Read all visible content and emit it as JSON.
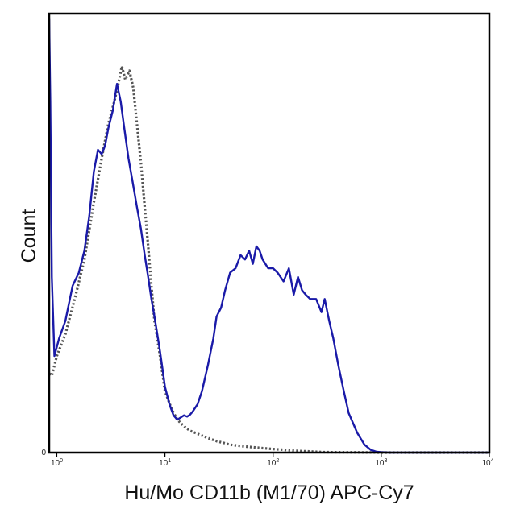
{
  "chart_data": {
    "type": "line",
    "xlabel": "Hu/Mo CD11b (M1/70) APC-Cy7",
    "ylabel": "Count",
    "x_scale": "log",
    "xlim": [
      0.85,
      10000
    ],
    "ylim": [
      0,
      100
    ],
    "x_ticks": [
      {
        "value": 1,
        "base": "10",
        "exp": "0"
      },
      {
        "value": 10,
        "base": "10",
        "exp": "1"
      },
      {
        "value": 100,
        "base": "10",
        "exp": "2"
      },
      {
        "value": 1000,
        "base": "10",
        "exp": "3"
      },
      {
        "value": 10000,
        "base": "10",
        "exp": "4"
      }
    ],
    "y_tick_label": "0",
    "colors": {
      "stained": "#1a1aa8",
      "control": "#555555",
      "axis": "#000000"
    },
    "series": [
      {
        "style": "dotted",
        "color": "#555555",
        "x": [
          0.86,
          0.9,
          1.0,
          1.2,
          1.5,
          1.8,
          2.2,
          2.6,
          3.0,
          3.4,
          3.7,
          4.0,
          4.3,
          4.7,
          5.1,
          5.5,
          6.0,
          6.5,
          7.0,
          7.5,
          8.0,
          9.0,
          10,
          11.5,
          13,
          15,
          17,
          20,
          25,
          30,
          35,
          40,
          50,
          60,
          80,
          100,
          130,
          160,
          200,
          300,
          500,
          1000,
          10000
        ],
        "y": [
          18,
          17.5,
          22,
          27,
          36,
          44,
          57,
          67,
          75,
          80,
          84,
          88,
          85,
          87,
          83,
          75,
          66,
          56,
          47,
          38,
          30,
          22,
          14,
          10,
          7.5,
          6,
          5,
          4.3,
          3.3,
          2.6,
          2.2,
          1.8,
          1.5,
          1.3,
          1.0,
          0.8,
          0.6,
          0.4,
          0.3,
          0.1,
          0.05,
          0,
          0
        ]
      },
      {
        "style": "solid",
        "color": "#1a1aa8",
        "x": [
          0.85,
          0.87,
          0.9,
          0.95,
          1.05,
          1.2,
          1.4,
          1.6,
          1.8,
          2.0,
          2.2,
          2.4,
          2.6,
          2.8,
          3.0,
          3.3,
          3.6,
          3.9,
          4.2,
          4.6,
          5.0,
          5.5,
          6.0,
          6.5,
          7.0,
          7.5,
          8.0,
          8.5,
          9.0,
          9.5,
          10,
          11,
          12,
          13,
          14,
          15,
          16,
          17,
          18,
          20,
          22,
          25,
          28,
          30,
          33,
          36,
          40,
          45,
          50,
          55,
          60,
          65,
          70,
          75,
          80,
          90,
          100,
          110,
          125,
          140,
          155,
          170,
          185,
          200,
          220,
          250,
          280,
          300,
          330,
          360,
          400,
          450,
          500,
          600,
          700,
          800,
          900,
          1000,
          1200,
          10000
        ],
        "y": [
          99,
          80,
          40,
          22,
          26,
          30,
          38,
          41,
          46,
          54,
          64,
          69,
          68,
          70,
          74,
          78,
          84,
          80,
          74,
          67,
          62,
          56,
          51,
          45,
          40,
          35,
          31,
          27,
          23,
          19,
          15,
          11,
          8.5,
          7.5,
          8.0,
          8.5,
          8.2,
          8.6,
          9.3,
          11,
          14,
          20,
          26,
          31,
          33,
          37,
          41,
          42,
          45,
          44,
          46,
          43,
          47,
          46,
          44,
          42,
          42,
          41,
          39,
          42,
          36,
          40,
          37,
          36,
          35,
          35,
          32,
          35,
          30,
          26,
          20,
          14,
          9,
          4.5,
          1.8,
          0.6,
          0.2,
          0.1,
          0,
          0
        ]
      }
    ]
  }
}
